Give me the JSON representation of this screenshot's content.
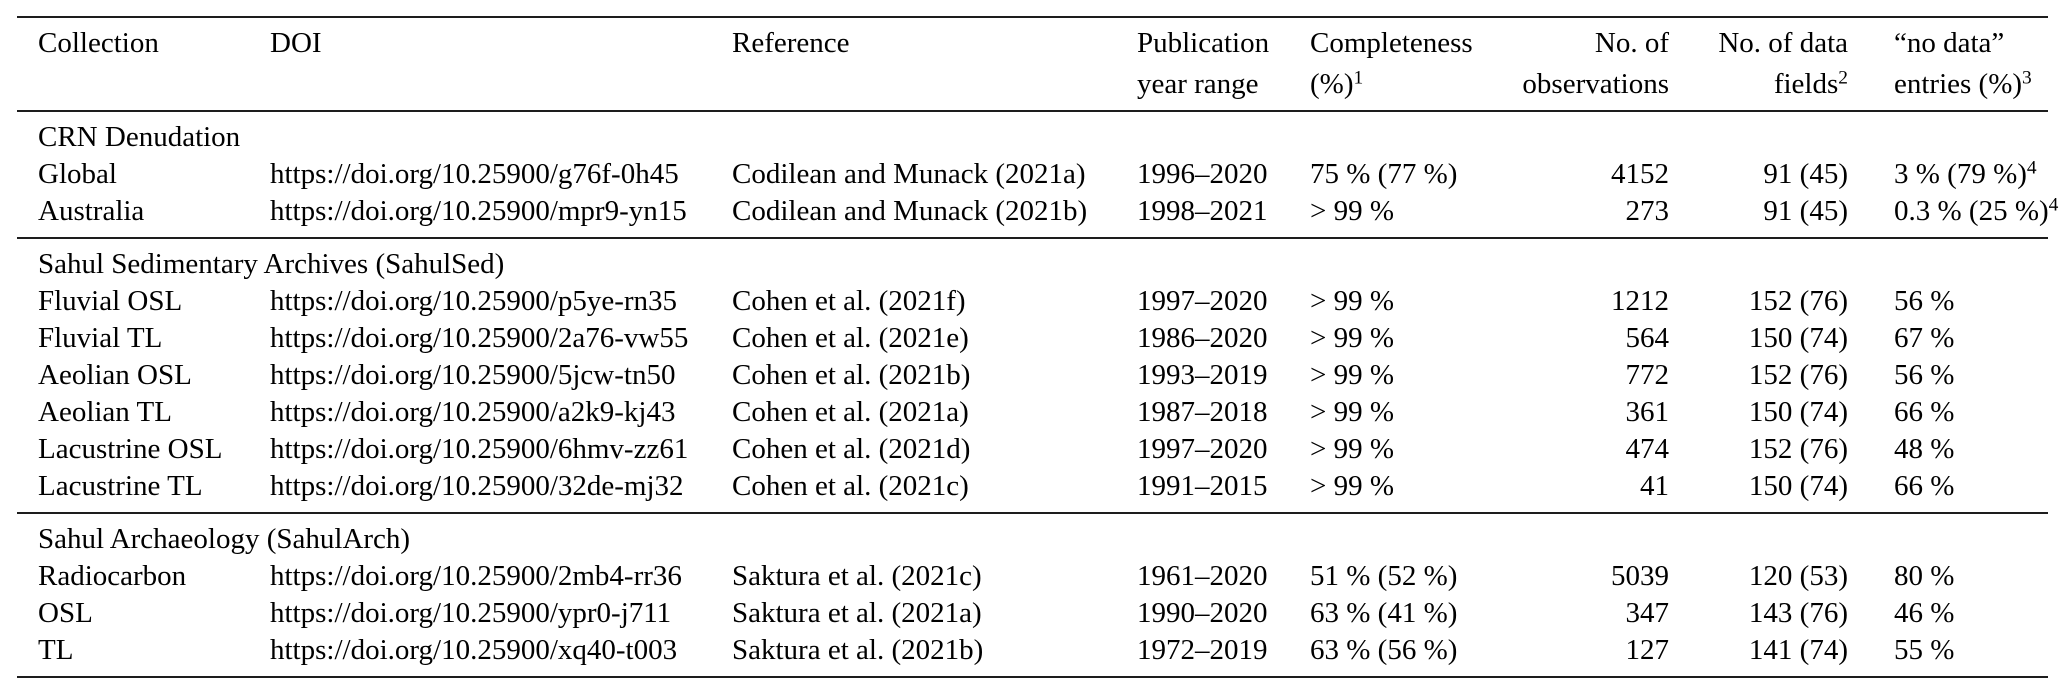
{
  "page": {
    "background_color": "#ffffff",
    "text_color": "#000000",
    "rule_color": "#1d1d1d"
  },
  "table": {
    "headers": [
      {
        "id": "collection",
        "line1": "Collection"
      },
      {
        "id": "doi",
        "line1": "DOI"
      },
      {
        "id": "reference",
        "line1": "Reference"
      },
      {
        "id": "publication-year-range",
        "line1": "Publication",
        "line2": "year range"
      },
      {
        "id": "completeness",
        "line1": "Completeness",
        "line2": "(%)",
        "sup": "1"
      },
      {
        "id": "observations",
        "line1": "No. of",
        "line2": "observations"
      },
      {
        "id": "data-fields",
        "line1": "No. of data",
        "line2": "fields",
        "sup": "2"
      },
      {
        "id": "no-data-entries",
        "line1": "“no data”",
        "line2": "entries (%)",
        "sup": "3"
      }
    ],
    "sections": [
      {
        "title": "CRN Denudation",
        "rows": [
          {
            "collection": "Global",
            "doi": "https://doi.org/10.25900/g76f-0h45",
            "reference": "Codilean and Munack (2021a)",
            "years": "1996–2020",
            "completeness": "75 % (77 %)",
            "observations": "4152",
            "fields": "91 (45)",
            "no_data": "3 % (79 %)",
            "no_data_sup": "4"
          },
          {
            "collection": "Australia",
            "doi": "https://doi.org/10.25900/mpr9-yn15",
            "reference": "Codilean and Munack (2021b)",
            "years": "1998–2021",
            "completeness": "> 99 %",
            "observations": "273",
            "fields": "91 (45)",
            "no_data": "0.3 % (25 %)",
            "no_data_sup": "4"
          }
        ]
      },
      {
        "title": "Sahul Sedimentary Archives (SahulSed)",
        "rows": [
          {
            "collection": "Fluvial OSL",
            "doi": "https://doi.org/10.25900/p5ye-rn35",
            "reference": "Cohen et al. (2021f)",
            "years": "1997–2020",
            "completeness": "> 99 %",
            "observations": "1212",
            "fields": "152 (76)",
            "no_data": "56 %"
          },
          {
            "collection": "Fluvial TL",
            "doi": "https://doi.org/10.25900/2a76-vw55",
            "reference": "Cohen et al. (2021e)",
            "years": "1986–2020",
            "completeness": "> 99 %",
            "observations": "564",
            "fields": "150 (74)",
            "no_data": "67 %"
          },
          {
            "collection": "Aeolian OSL",
            "doi": "https://doi.org/10.25900/5jcw-tn50",
            "reference": "Cohen et al. (2021b)",
            "years": "1993–2019",
            "completeness": "> 99 %",
            "observations": "772",
            "fields": "152 (76)",
            "no_data": "56 %"
          },
          {
            "collection": "Aeolian TL",
            "doi": "https://doi.org/10.25900/a2k9-kj43",
            "reference": "Cohen et al. (2021a)",
            "years": "1987–2018",
            "completeness": "> 99 %",
            "observations": "361",
            "fields": "150 (74)",
            "no_data": "66 %"
          },
          {
            "collection": "Lacustrine OSL",
            "doi": "https://doi.org/10.25900/6hmv-zz61",
            "reference": "Cohen et al. (2021d)",
            "years": "1997–2020",
            "completeness": "> 99 %",
            "observations": "474",
            "fields": "152 (76)",
            "no_data": "48 %"
          },
          {
            "collection": "Lacustrine TL",
            "doi": "https://doi.org/10.25900/32de-mj32",
            "reference": "Cohen et al. (2021c)",
            "years": "1991–2015",
            "completeness": "> 99 %",
            "observations": "41",
            "fields": "150 (74)",
            "no_data": "66 %"
          }
        ]
      },
      {
        "title": "Sahul Archaeology (SahulArch)",
        "rows": [
          {
            "collection": "Radiocarbon",
            "doi": "https://doi.org/10.25900/2mb4-rr36",
            "reference": "Saktura et al. (2021c)",
            "years": "1961–2020",
            "completeness": "51 % (52 %)",
            "observations": "5039",
            "fields": "120 (53)",
            "no_data": "80 %"
          },
          {
            "collection": "OSL",
            "doi": "https://doi.org/10.25900/ypr0-j711",
            "reference": "Saktura et al. (2021a)",
            "years": "1990–2020",
            "completeness": "63 % (41 %)",
            "observations": "347",
            "fields": "143 (76)",
            "no_data": "46 %"
          },
          {
            "collection": "TL",
            "doi": "https://doi.org/10.25900/xq40-t003",
            "reference": "Saktura et al. (2021b)",
            "years": "1972–2019",
            "completeness": "63 % (56 %)",
            "observations": "127",
            "fields": "141 (74)",
            "no_data": "55 %"
          }
        ]
      }
    ]
  }
}
